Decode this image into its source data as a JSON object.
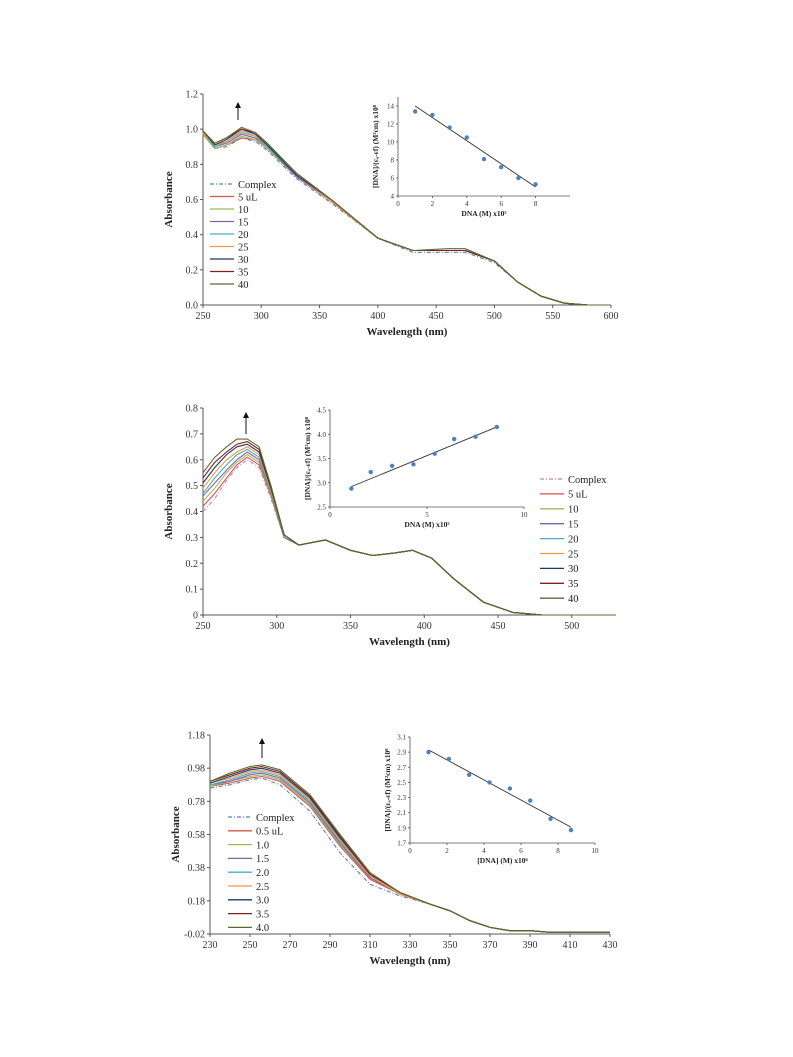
{
  "chart_data": [
    {
      "type": "line",
      "xlabel": "Wavelength (nm)",
      "ylabel": "Absorbance",
      "xlim": [
        250,
        600
      ],
      "ylim": [
        0,
        1.2
      ],
      "xticks": [
        "250",
        "300",
        "350",
        "400",
        "450",
        "500",
        "550",
        "600"
      ],
      "yticks": [
        "0.0",
        "0.2",
        "0.4",
        "0.6",
        "0.8",
        "1.0",
        "1.2"
      ],
      "legend": [
        "Complex",
        "5 uL",
        "10",
        "15",
        "20",
        "25",
        "30",
        "35",
        "40"
      ],
      "legend_placement": "left",
      "colors": [
        "#5b7fbf",
        "#d9534f",
        "#9bbb59",
        "#8064a2",
        "#4bacc6",
        "#f79646",
        "#1f3864",
        "#7f2020",
        "#5a6b2f"
      ],
      "x": [
        250,
        260,
        270,
        283,
        295,
        305,
        330,
        360,
        400,
        430,
        460,
        475,
        500,
        520,
        540,
        560,
        580,
        600
      ],
      "series": [
        {
          "name": "Complex",
          "values": [
            0.97,
            0.89,
            0.9,
            0.95,
            0.93,
            0.88,
            0.72,
            0.58,
            0.38,
            0.3,
            0.3,
            0.3,
            0.24,
            0.13,
            0.05,
            0.01,
            0.0,
            0.0
          ]
        },
        {
          "name": "5 uL",
          "values": [
            0.97,
            0.89,
            0.91,
            0.95,
            0.94,
            0.89,
            0.73,
            0.59,
            0.38,
            0.31,
            0.31,
            0.31,
            0.25,
            0.13,
            0.05,
            0.01,
            0.0,
            0.0
          ]
        },
        {
          "name": "10",
          "values": [
            0.97,
            0.89,
            0.91,
            0.96,
            0.94,
            0.89,
            0.73,
            0.59,
            0.38,
            0.31,
            0.31,
            0.31,
            0.25,
            0.13,
            0.05,
            0.01,
            0.0,
            0.0
          ]
        },
        {
          "name": "15",
          "values": [
            0.98,
            0.9,
            0.92,
            0.97,
            0.95,
            0.9,
            0.73,
            0.59,
            0.38,
            0.31,
            0.31,
            0.31,
            0.25,
            0.13,
            0.05,
            0.01,
            0.0,
            0.0
          ]
        },
        {
          "name": "20",
          "values": [
            0.98,
            0.9,
            0.93,
            0.98,
            0.96,
            0.9,
            0.74,
            0.59,
            0.38,
            0.31,
            0.31,
            0.31,
            0.25,
            0.13,
            0.05,
            0.01,
            0.0,
            0.0
          ]
        },
        {
          "name": "25",
          "values": [
            0.98,
            0.91,
            0.93,
            0.99,
            0.96,
            0.91,
            0.74,
            0.59,
            0.38,
            0.31,
            0.31,
            0.31,
            0.25,
            0.13,
            0.05,
            0.01,
            0.0,
            0.0
          ]
        },
        {
          "name": "30",
          "values": [
            0.99,
            0.91,
            0.94,
            1.0,
            0.97,
            0.91,
            0.74,
            0.6,
            0.38,
            0.31,
            0.31,
            0.31,
            0.25,
            0.13,
            0.05,
            0.01,
            0.0,
            0.0
          ]
        },
        {
          "name": "35",
          "values": [
            0.99,
            0.92,
            0.95,
            1.0,
            0.98,
            0.92,
            0.75,
            0.6,
            0.38,
            0.31,
            0.31,
            0.31,
            0.25,
            0.13,
            0.05,
            0.01,
            0.0,
            0.0
          ]
        },
        {
          "name": "40",
          "values": [
            0.99,
            0.92,
            0.95,
            1.01,
            0.98,
            0.92,
            0.75,
            0.6,
            0.38,
            0.31,
            0.32,
            0.32,
            0.25,
            0.13,
            0.05,
            0.01,
            0.0,
            0.0
          ]
        }
      ],
      "inset": {
        "type": "scatter",
        "xlabel": "DNA (M) x10⁵",
        "ylabel": "[DNA]/(εₐ-εf) (M²cm) x10⁸",
        "xlim": [
          0,
          10
        ],
        "ylim": [
          4,
          15
        ],
        "xticks": [
          "0",
          "2",
          "4",
          "6",
          "8"
        ],
        "yticks": [
          "4",
          "6",
          "8",
          "10",
          "12",
          "14"
        ],
        "x": [
          1,
          2,
          3,
          4,
          5,
          6,
          7,
          8
        ],
        "y": [
          13.4,
          13.0,
          11.6,
          10.5,
          8.1,
          7.2,
          6.0,
          5.3
        ],
        "fit": [
          [
            1,
            14.0
          ],
          [
            8,
            5.0
          ]
        ]
      }
    },
    {
      "type": "line",
      "xlabel": "Wavelength (nm)",
      "ylabel": "Absorbance",
      "xlim": [
        250,
        530
      ],
      "ylim": [
        0,
        0.8
      ],
      "xticks": [
        "250",
        "300",
        "350",
        "400",
        "450",
        "500"
      ],
      "yticks": [
        "0",
        "0.1",
        "0.2",
        "0.3",
        "0.4",
        "0.5",
        "0.6",
        "0.7",
        "0.8"
      ],
      "legend": [
        "Complex",
        "5 uL",
        "10",
        "15",
        "20",
        "25",
        "30",
        "35",
        "40"
      ],
      "legend_placement": "right",
      "colors": [
        "#c77fbf",
        "#d9534f",
        "#9bbb59",
        "#8064a2",
        "#4bacc6",
        "#f79646",
        "#1f3864",
        "#7f2020",
        "#5a6b2f"
      ],
      "x": [
        250,
        258,
        266,
        273,
        280,
        288,
        296,
        305,
        315,
        333,
        350,
        365,
        380,
        392,
        405,
        420,
        440,
        460,
        480,
        500,
        530
      ],
      "series": [
        {
          "name": "Complex",
          "values": [
            0.4,
            0.45,
            0.52,
            0.57,
            0.6,
            0.57,
            0.45,
            0.3,
            0.27,
            0.29,
            0.25,
            0.23,
            0.24,
            0.25,
            0.22,
            0.14,
            0.05,
            0.01,
            0.0,
            0.0,
            0.0
          ]
        },
        {
          "name": "5 uL",
          "values": [
            0.42,
            0.47,
            0.53,
            0.58,
            0.61,
            0.58,
            0.46,
            0.3,
            0.27,
            0.29,
            0.25,
            0.23,
            0.24,
            0.25,
            0.22,
            0.14,
            0.05,
            0.01,
            0.0,
            0.0,
            0.0
          ]
        },
        {
          "name": "10",
          "values": [
            0.44,
            0.49,
            0.55,
            0.59,
            0.62,
            0.59,
            0.46,
            0.3,
            0.27,
            0.29,
            0.25,
            0.23,
            0.24,
            0.25,
            0.22,
            0.14,
            0.05,
            0.01,
            0.0,
            0.0,
            0.0
          ]
        },
        {
          "name": "15",
          "values": [
            0.46,
            0.51,
            0.56,
            0.6,
            0.63,
            0.6,
            0.47,
            0.3,
            0.27,
            0.29,
            0.25,
            0.23,
            0.24,
            0.25,
            0.22,
            0.14,
            0.05,
            0.01,
            0.0,
            0.0,
            0.0
          ]
        },
        {
          "name": "20",
          "values": [
            0.47,
            0.53,
            0.58,
            0.62,
            0.64,
            0.61,
            0.48,
            0.31,
            0.27,
            0.29,
            0.25,
            0.23,
            0.24,
            0.25,
            0.22,
            0.14,
            0.05,
            0.01,
            0.0,
            0.0,
            0.0
          ]
        },
        {
          "name": "25",
          "values": [
            0.49,
            0.55,
            0.6,
            0.63,
            0.65,
            0.62,
            0.48,
            0.31,
            0.27,
            0.29,
            0.25,
            0.23,
            0.24,
            0.25,
            0.22,
            0.14,
            0.05,
            0.01,
            0.0,
            0.0,
            0.0
          ]
        },
        {
          "name": "30",
          "values": [
            0.51,
            0.57,
            0.62,
            0.65,
            0.66,
            0.63,
            0.49,
            0.31,
            0.27,
            0.29,
            0.25,
            0.23,
            0.24,
            0.25,
            0.22,
            0.14,
            0.05,
            0.01,
            0.0,
            0.0,
            0.0
          ]
        },
        {
          "name": "35",
          "values": [
            0.53,
            0.59,
            0.63,
            0.66,
            0.67,
            0.64,
            0.5,
            0.31,
            0.27,
            0.29,
            0.25,
            0.23,
            0.24,
            0.25,
            0.22,
            0.14,
            0.05,
            0.01,
            0.0,
            0.0,
            0.0
          ]
        },
        {
          "name": "40",
          "values": [
            0.55,
            0.61,
            0.65,
            0.68,
            0.68,
            0.65,
            0.5,
            0.31,
            0.27,
            0.29,
            0.25,
            0.23,
            0.24,
            0.25,
            0.22,
            0.14,
            0.05,
            0.01,
            0.0,
            0.0,
            0.0
          ]
        }
      ],
      "inset": {
        "type": "scatter",
        "xlabel": "DNA (M) x10⁵",
        "ylabel": "[DNA]/(εₐ-εf) (M²cm) x10⁸",
        "xlim": [
          0,
          10
        ],
        "ylim": [
          2.5,
          4.5
        ],
        "xticks": [
          "0",
          "5",
          "10"
        ],
        "yticks": [
          "2.5",
          "3.0",
          "3.5",
          "4.0",
          "4.5"
        ],
        "x": [
          1.1,
          2.1,
          3.2,
          4.3,
          5.4,
          6.4,
          7.5,
          8.6
        ],
        "y": [
          2.88,
          3.22,
          3.35,
          3.38,
          3.6,
          3.9,
          3.95,
          4.15
        ],
        "fit": [
          [
            1.1,
            2.92
          ],
          [
            8.6,
            4.15
          ]
        ]
      }
    },
    {
      "type": "line",
      "xlabel": "Wavelength (nm)",
      "ylabel": "Absorbance",
      "xlim": [
        230,
        430
      ],
      "ylim": [
        -0.02,
        1.18
      ],
      "xticks": [
        "230",
        "250",
        "270",
        "290",
        "310",
        "330",
        "350",
        "370",
        "390",
        "410",
        "430"
      ],
      "yticks": [
        "-0.02",
        "0.18",
        "0.38",
        "0.58",
        "0.78",
        "0.98",
        "1.18"
      ],
      "legend": [
        "Complex",
        "0.5 uL",
        "1.0",
        "1.5",
        "2.0",
        "2.5",
        "3.0",
        "3.5",
        "4.0"
      ],
      "legend_placement": "left",
      "colors": [
        "#5b7fbf",
        "#d9534f",
        "#9bbb59",
        "#8064a2",
        "#4bacc6",
        "#f79646",
        "#1f3864",
        "#7f2020",
        "#5a6b2f"
      ],
      "x": [
        230,
        240,
        250,
        256,
        265,
        280,
        295,
        310,
        325,
        340,
        350,
        360,
        370,
        380,
        390,
        400,
        410,
        430
      ],
      "series": [
        {
          "name": "Complex",
          "values": [
            0.86,
            0.88,
            0.91,
            0.92,
            0.88,
            0.72,
            0.47,
            0.28,
            0.21,
            0.16,
            0.12,
            0.06,
            0.02,
            0.0,
            0.0,
            -0.01,
            -0.01,
            -0.01
          ]
        },
        {
          "name": "0.5 uL",
          "values": [
            0.87,
            0.89,
            0.92,
            0.93,
            0.9,
            0.75,
            0.51,
            0.31,
            0.22,
            0.16,
            0.12,
            0.06,
            0.02,
            0.0,
            0.0,
            -0.01,
            -0.01,
            -0.01
          ]
        },
        {
          "name": "1.0",
          "values": [
            0.87,
            0.9,
            0.93,
            0.94,
            0.91,
            0.76,
            0.52,
            0.32,
            0.22,
            0.16,
            0.12,
            0.06,
            0.02,
            0.0,
            0.0,
            -0.01,
            -0.01,
            -0.01
          ]
        },
        {
          "name": "1.5",
          "values": [
            0.88,
            0.9,
            0.94,
            0.95,
            0.92,
            0.77,
            0.53,
            0.32,
            0.22,
            0.16,
            0.12,
            0.06,
            0.02,
            0.0,
            0.0,
            -0.01,
            -0.01,
            -0.01
          ]
        },
        {
          "name": "2.0",
          "values": [
            0.88,
            0.91,
            0.95,
            0.96,
            0.93,
            0.78,
            0.54,
            0.33,
            0.22,
            0.16,
            0.12,
            0.06,
            0.02,
            0.0,
            0.0,
            -0.01,
            -0.01,
            -0.01
          ]
        },
        {
          "name": "2.5",
          "values": [
            0.89,
            0.92,
            0.96,
            0.97,
            0.94,
            0.79,
            0.55,
            0.33,
            0.22,
            0.16,
            0.12,
            0.06,
            0.02,
            0.0,
            0.0,
            -0.01,
            -0.01,
            -0.01
          ]
        },
        {
          "name": "3.0",
          "values": [
            0.89,
            0.93,
            0.97,
            0.98,
            0.95,
            0.8,
            0.56,
            0.34,
            0.23,
            0.16,
            0.12,
            0.06,
            0.02,
            0.0,
            0.0,
            -0.01,
            -0.01,
            -0.01
          ]
        },
        {
          "name": "3.5",
          "values": [
            0.9,
            0.94,
            0.98,
            0.99,
            0.96,
            0.81,
            0.57,
            0.34,
            0.23,
            0.16,
            0.12,
            0.06,
            0.02,
            0.0,
            0.0,
            -0.01,
            -0.01,
            -0.01
          ]
        },
        {
          "name": "4.0",
          "values": [
            0.9,
            0.95,
            0.99,
            1.0,
            0.97,
            0.82,
            0.58,
            0.35,
            0.23,
            0.16,
            0.12,
            0.06,
            0.02,
            0.0,
            0.0,
            -0.01,
            -0.01,
            -0.01
          ]
        }
      ],
      "inset": {
        "type": "scatter",
        "xlabel": "[DNA] (M) x10⁶",
        "ylabel": "[DNA]/(εₐ-εf) (M²cm) x10⁸",
        "xlim": [
          0,
          10
        ],
        "ylim": [
          1.7,
          3.1
        ],
        "xticks": [
          "0",
          "2",
          "4",
          "6",
          "8",
          "10"
        ],
        "yticks": [
          "1.7",
          "1.9",
          "2.1",
          "2.3",
          "2.5",
          "2.7",
          "2.9",
          "3.1"
        ],
        "x": [
          1.0,
          2.1,
          3.2,
          4.3,
          5.4,
          6.5,
          7.6,
          8.7
        ],
        "y": [
          2.9,
          2.81,
          2.6,
          2.5,
          2.42,
          2.26,
          2.02,
          1.87
        ],
        "fit": [
          [
            1.0,
            2.93
          ],
          [
            8.7,
            1.91
          ]
        ]
      }
    }
  ]
}
